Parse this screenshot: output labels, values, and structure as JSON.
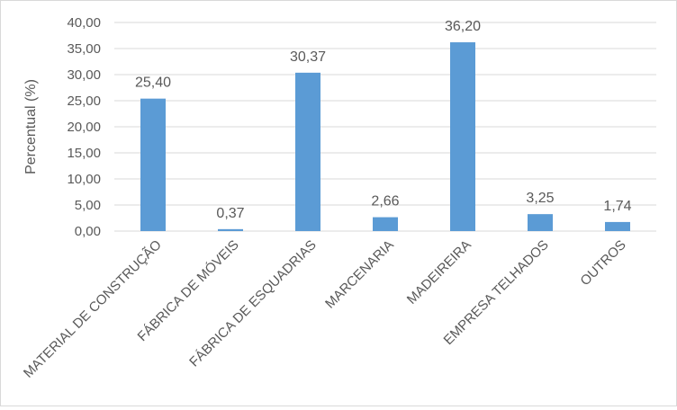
{
  "chart_data": {
    "type": "bar",
    "title": "",
    "xlabel": "",
    "ylabel": "Percentual (%)",
    "ylim": [
      0,
      40
    ],
    "yticks": [
      "0,00",
      "5,00",
      "10,00",
      "15,00",
      "20,00",
      "25,00",
      "30,00",
      "35,00",
      "40,00"
    ],
    "grid": true,
    "legend": "none",
    "bar_color": "#5b9bd5",
    "categories": [
      "MATERIAL DE CONSTRUÇÃO",
      "FÁBRICA DE MÓVEIS",
      "FÁBRICA DE ESQUADRIAS",
      "MARCENARIA",
      "MADEIREIRA",
      "EMPRESA TELHADOS",
      "OUTROS"
    ],
    "values": [
      25.4,
      0.37,
      30.37,
      2.66,
      36.2,
      3.25,
      1.74
    ],
    "data_labels": [
      "25,40",
      "0,37",
      "30,37",
      "2,66",
      "36,20",
      "3,25",
      "1,74"
    ]
  }
}
